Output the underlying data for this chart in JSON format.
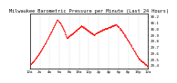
{
  "title": "Milwaukee Barometric Pressure per Minute (Last 24 Hours)",
  "ylim": [
    29.35,
    30.25
  ],
  "yticks": [
    29.4,
    29.5,
    29.6,
    29.7,
    29.8,
    29.9,
    30.0,
    30.1,
    30.2
  ],
  "ytick_labels": [
    "29.4",
    "29.5",
    "29.6",
    "29.7",
    "29.8",
    "29.9",
    "30.0",
    "30.1",
    "30.2"
  ],
  "num_points": 1440,
  "background_color": "#ffffff",
  "dot_color": "#ff0000",
  "grid_color": "#c0c0c0",
  "title_fontsize": 3.8,
  "tick_fontsize": 3.0,
  "xlim": [
    0,
    1440
  ],
  "xtick_positions": [
    0,
    120,
    240,
    360,
    480,
    600,
    720,
    840,
    960,
    1080,
    1200,
    1320,
    1440
  ],
  "xtick_labels": [
    "12a",
    "2a",
    "4a",
    "6a",
    "8a",
    "10a",
    "12p",
    "2p",
    "4p",
    "6p",
    "8p",
    "10p",
    "12a"
  ]
}
